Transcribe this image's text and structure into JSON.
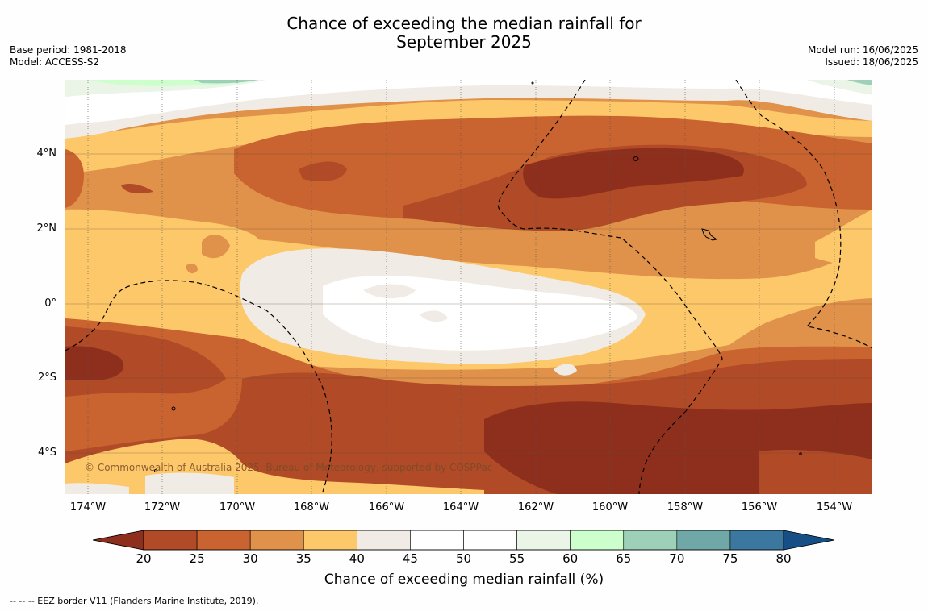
{
  "title_line1": "Chance of exceeding the median rainfall for",
  "title_line2": "September 2025",
  "base_period": "Base period: 1981-2018",
  "model": "Model: ACCESS-S2",
  "model_run": "Model run: 16/06/2025",
  "issued": "Issued: 18/06/2025",
  "lat_labels": [
    "4°N",
    "2°N",
    "0°",
    "2°S",
    "4°S"
  ],
  "lon_labels": [
    "174°W",
    "172°W",
    "170°W",
    "168°W",
    "166°W",
    "164°W",
    "162°W",
    "160°W",
    "158°W",
    "156°W",
    "154°W"
  ],
  "credit": "© Commonwealth of Australia 2025, Bureau of Meteorology, supported by COSPPac",
  "colorbar": {
    "label": "Chance of exceeding median rainfall (%)",
    "ticks": [
      "20",
      "25",
      "30",
      "35",
      "40",
      "45",
      "50",
      "55",
      "60",
      "65",
      "70",
      "75",
      "80"
    ],
    "under_color": "#8e2f1d",
    "over_color": "#164f86",
    "colors": [
      "#b04a27",
      "#c9632f",
      "#e0924a",
      "#fdc86a",
      "#f0ece5",
      "#ffffff",
      "#ffffff",
      "#eaf5e8",
      "#ccffcc",
      "#9ed0b8",
      "#70a8a8",
      "#3c77a0"
    ]
  },
  "footnote": "--  --  -- EEZ border V11 (Flanders Marine Institute, 2019)."
}
